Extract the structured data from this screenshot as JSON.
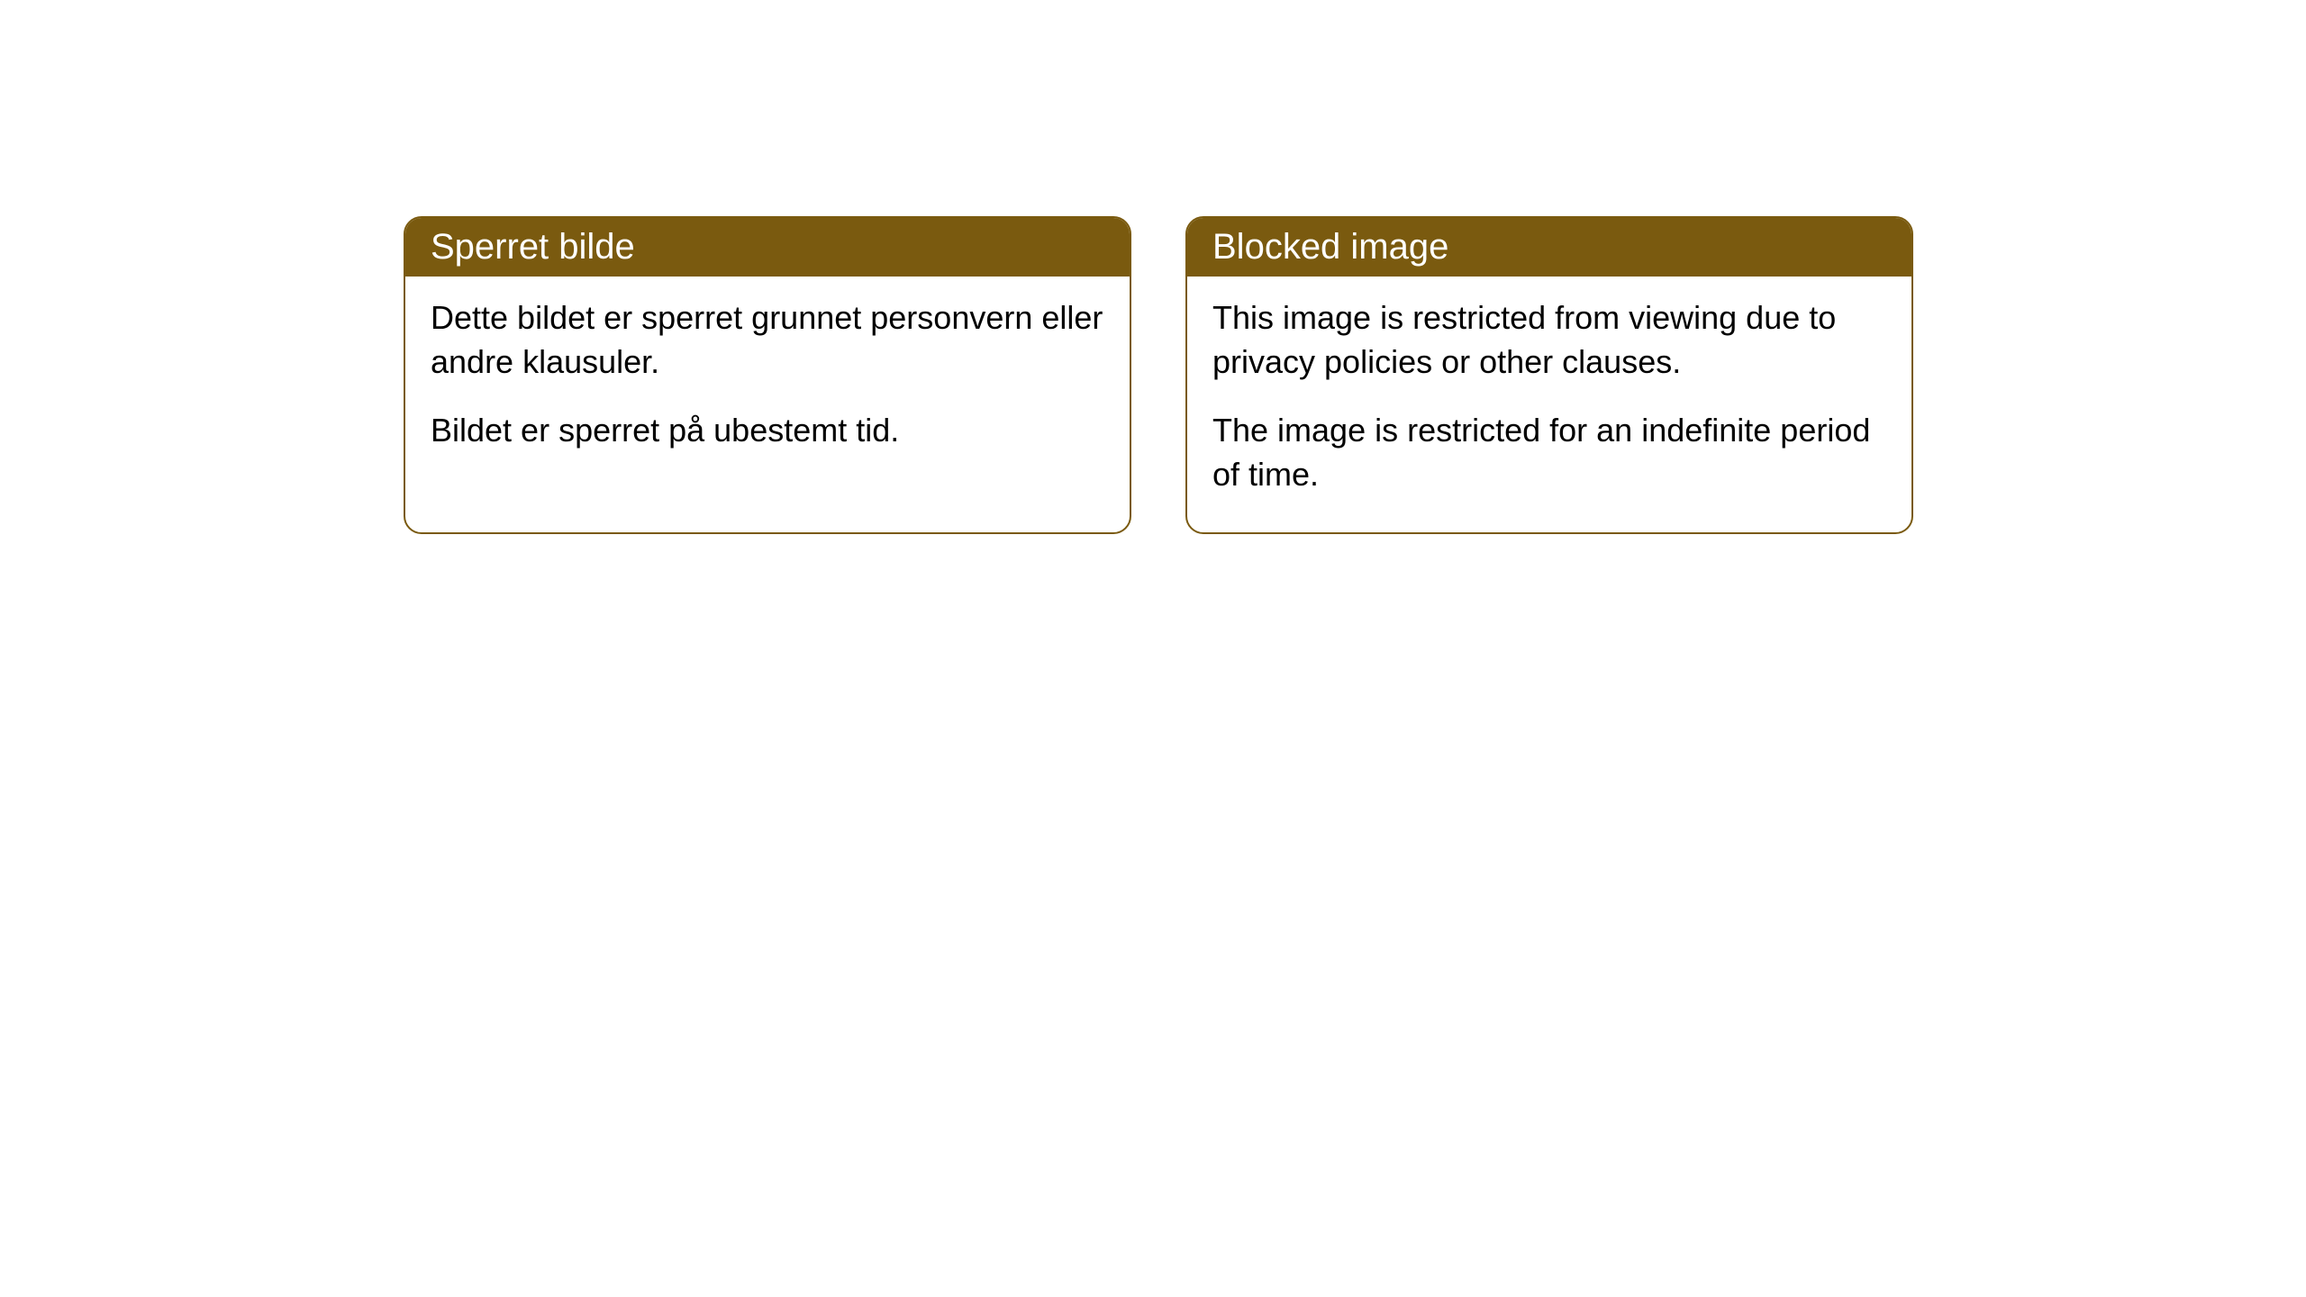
{
  "cards": [
    {
      "title": "Sperret bilde",
      "paragraph1": "Dette bildet er sperret grunnet personvern eller andre klausuler.",
      "paragraph2": "Bildet er sperret på ubestemt tid."
    },
    {
      "title": "Blocked image",
      "paragraph1": "This image is restricted from viewing due to privacy policies or other clauses.",
      "paragraph2": "The image is restricted for an indefinite period of time."
    }
  ],
  "styling": {
    "header_background": "#7a5a0f",
    "header_text_color": "#ffffff",
    "card_border_color": "#7a5a0f",
    "card_background": "#ffffff",
    "body_text_color": "#000000",
    "page_background": "#ffffff",
    "border_radius": 20,
    "title_fontsize": 40,
    "body_fontsize": 36
  }
}
